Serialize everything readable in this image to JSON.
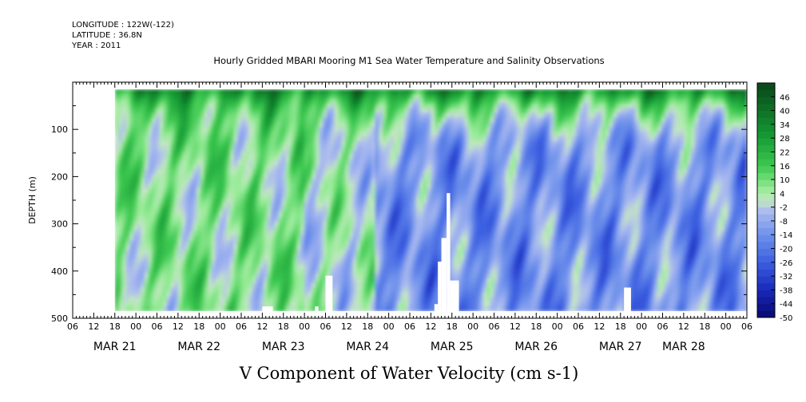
{
  "meta": {
    "longitude": "LONGITUDE : 122W(-122)",
    "latitude": "LATITUDE : 36.8N",
    "year": "YEAR : 2011"
  },
  "chart_data": {
    "type": "heatmap",
    "title": "Hourly Gridded MBARI Mooring M1 Sea Water Temperature and Salinity Observations",
    "xlabel": "V Component of Water Velocity (cm s-1)",
    "ylabel": "DEPTH (m)",
    "x_axis": {
      "unit": "hours since MAR 21 00:00",
      "range": [
        -18,
        174
      ],
      "hour_tick_labels": [
        "06",
        "12",
        "18",
        "00",
        "06",
        "12",
        "18",
        "00",
        "06",
        "12",
        "18",
        "00",
        "06",
        "12",
        "18",
        "00",
        "06",
        "12",
        "18",
        "00",
        "06",
        "12",
        "18",
        "00",
        "06",
        "12",
        "18",
        "00",
        "06",
        "12",
        "18",
        "00",
        "06"
      ],
      "hour_tick_values": [
        -18,
        -12,
        -6,
        0,
        6,
        12,
        18,
        24,
        30,
        36,
        42,
        48,
        54,
        60,
        66,
        72,
        78,
        84,
        90,
        96,
        102,
        108,
        114,
        120,
        126,
        132,
        138,
        144,
        150,
        156,
        162,
        168,
        174
      ],
      "date_labels": [
        {
          "label": "MAR 21",
          "x": -6
        },
        {
          "label": "MAR 22",
          "x": 18
        },
        {
          "label": "MAR 23",
          "x": 42
        },
        {
          "label": "MAR 24",
          "x": 66
        },
        {
          "label": "MAR 25",
          "x": 90
        },
        {
          "label": "MAR 26",
          "x": 114
        },
        {
          "label": "MAR 27",
          "x": 138
        },
        {
          "label": "MAR 28",
          "x": 156
        }
      ],
      "data_range": [
        -6,
        174
      ]
    },
    "y_axis": {
      "range": [
        500,
        0
      ],
      "tick_labels": [
        "100",
        "200",
        "300",
        "400",
        "500"
      ],
      "tick_values": [
        100,
        200,
        300,
        400,
        500
      ],
      "data_range": [
        15,
        485
      ]
    },
    "colorbar": {
      "labels": [
        "46",
        "40",
        "34",
        "28",
        "22",
        "16",
        "10",
        "4",
        "-2",
        "-8",
        "-14",
        "-20",
        "-26",
        "-32",
        "-38",
        "-44",
        "-50"
      ],
      "values": [
        46,
        40,
        34,
        28,
        22,
        16,
        10,
        4,
        -2,
        -8,
        -14,
        -20,
        -26,
        -32,
        -38,
        -44,
        -50
      ],
      "range": [
        -50,
        52
      ]
    },
    "missing_gaps": [
      {
        "x": [
          36,
          39
        ],
        "depth_from": 475
      },
      {
        "x": [
          51,
          52
        ],
        "depth_from": 475
      },
      {
        "x": [
          54,
          56
        ],
        "depth_from": 410
      },
      {
        "x": [
          85,
          86
        ],
        "depth_from": 470
      },
      {
        "x": [
          86,
          87
        ],
        "depth_from": 380
      },
      {
        "x": [
          87,
          88.5
        ],
        "depth_from": 330
      },
      {
        "x": [
          88.5,
          89.5
        ],
        "depth_from": 235
      },
      {
        "x": [
          89.5,
          92
        ],
        "depth_from": 420
      },
      {
        "x": [
          139,
          141
        ],
        "depth_from": 435
      }
    ]
  }
}
